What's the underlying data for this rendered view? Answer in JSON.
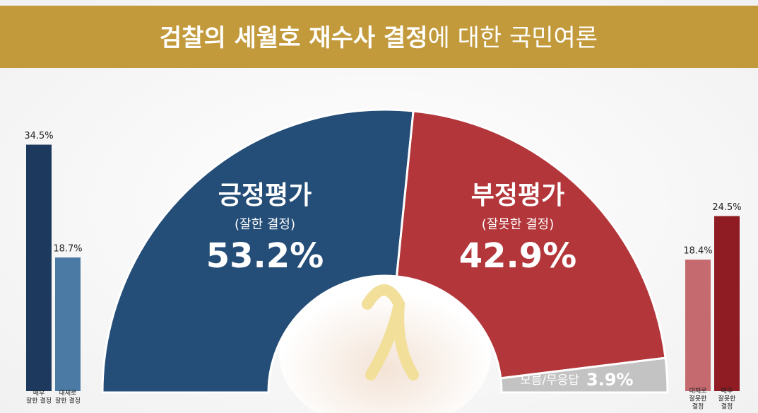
{
  "title": [
    "검찰의 세월호 재수사 결정",
    "에 대한 국민여론"
  ],
  "chart_data": [
    {
      "type": "half-donut",
      "categories": [
        "긍정평가",
        "부정평가",
        "모름/무응답"
      ],
      "sublabels": [
        "(잘한 결정)",
        "(잘못한 결정)",
        null
      ],
      "values": [
        53.2,
        42.9,
        3.9
      ],
      "value_labels": [
        "53.2%",
        "42.9%",
        "3.9%"
      ],
      "colors": [
        "#244d77",
        "#b3363a",
        "#c3c3c3"
      ]
    },
    {
      "type": "bar",
      "categories": [
        [
          "매우",
          "잘한 결정"
        ],
        [
          "대체로",
          "잘한 결정"
        ]
      ],
      "values": [
        34.5,
        18.7
      ],
      "value_labels": [
        "34.5%",
        "18.7%"
      ],
      "colors": [
        "#1d3a5e",
        "#4b7ba5"
      ]
    },
    {
      "type": "bar",
      "categories": [
        [
          "대체로",
          "잘못한",
          "결정"
        ],
        [
          "매우",
          "잘못한",
          "결정"
        ]
      ],
      "values": [
        18.4,
        24.5
      ],
      "value_labels": [
        "18.4%",
        "24.5%"
      ],
      "colors": [
        "#c56a6e",
        "#8f1c23"
      ]
    }
  ]
}
